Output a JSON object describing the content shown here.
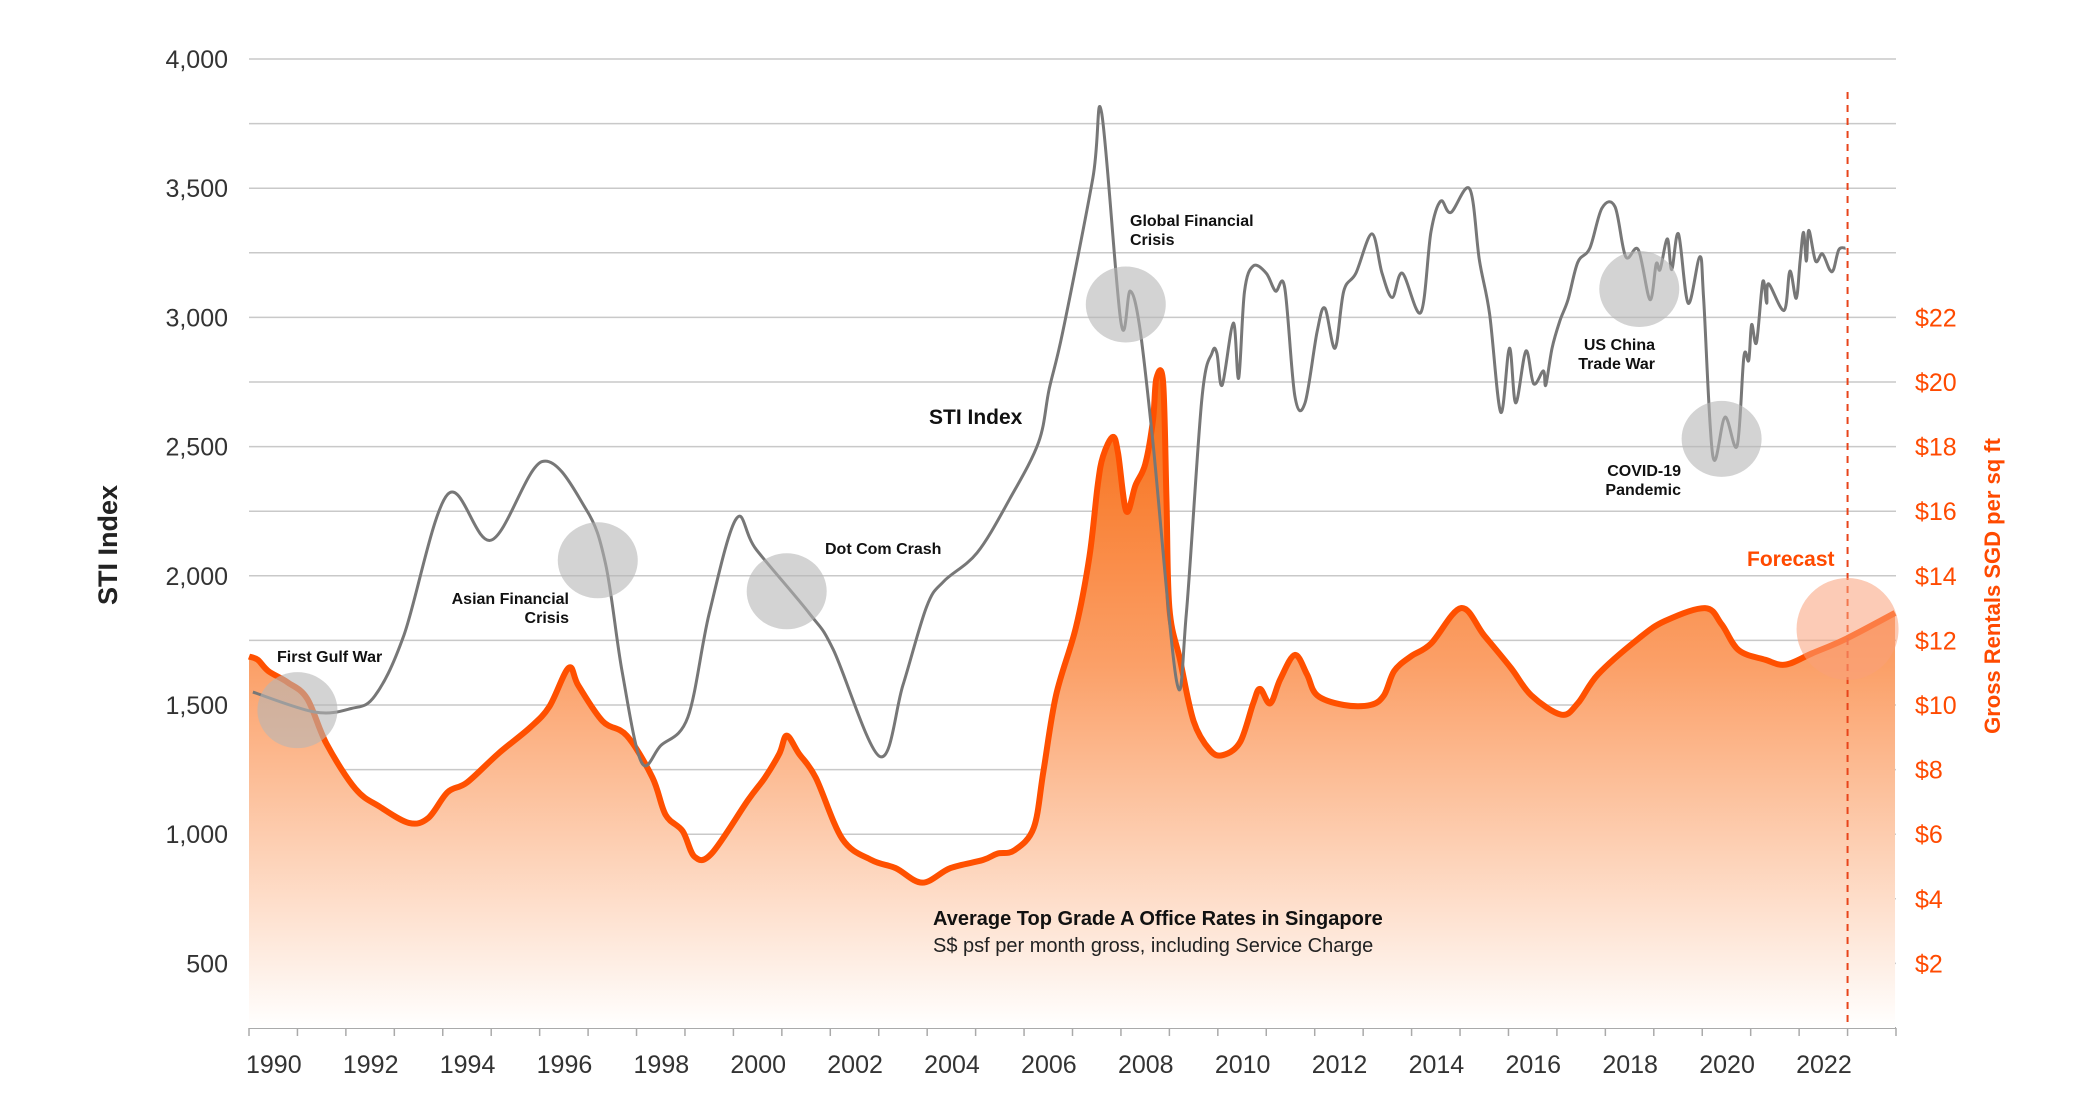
{
  "chart_data": {
    "type": "line",
    "title": "",
    "xlim": [
      1990,
      2024
    ],
    "x_ticks": [
      "1990",
      "1992",
      "1994",
      "1996",
      "1998",
      "2000",
      "2002",
      "2004",
      "2006",
      "2008",
      "2010",
      "2012",
      "2014",
      "2016",
      "2018",
      "2020",
      "2022"
    ],
    "left_axis": {
      "label": "STI Index",
      "ylim": [
        250,
        4000
      ],
      "ticks": [
        "500",
        "1,000",
        "1,500",
        "2,000",
        "2,500",
        "3,000",
        "3,500",
        "4,000"
      ]
    },
    "right_axis": {
      "label": "Gross Rentals SGD per sq ft",
      "ylim": [
        0,
        30
      ],
      "ticks": [
        "$2",
        "$4",
        "$6",
        "$8",
        "$10",
        "$12",
        "$14",
        "$16",
        "$18",
        "$20",
        "$22"
      ]
    },
    "grid": true,
    "forecast_line_x": 2023,
    "series": [
      {
        "name": "STI Index",
        "axis": "left",
        "color": "#777777",
        "points": [
          [
            1990.08,
            1550
          ],
          [
            1991.35,
            1473
          ],
          [
            1992.1,
            1486
          ],
          [
            1992.6,
            1536
          ],
          [
            1993.2,
            1771
          ],
          [
            1994.1,
            2315
          ],
          [
            1995.0,
            2138
          ],
          [
            1996.05,
            2442
          ],
          [
            1996.95,
            2260
          ],
          [
            1997.36,
            2047
          ],
          [
            1997.7,
            1632
          ],
          [
            1998.1,
            1279
          ],
          [
            1998.5,
            1343
          ],
          [
            1999.06,
            1453
          ],
          [
            1999.5,
            1854
          ],
          [
            2000.06,
            2221
          ],
          [
            2000.47,
            2102
          ],
          [
            2001.57,
            1854
          ],
          [
            2002.06,
            1715
          ],
          [
            2003.02,
            1301
          ],
          [
            2003.5,
            1577
          ],
          [
            2003.99,
            1881
          ],
          [
            2004.34,
            1978
          ],
          [
            2005.03,
            2089
          ],
          [
            2005.7,
            2296
          ],
          [
            2006.3,
            2517
          ],
          [
            2006.52,
            2724
          ],
          [
            2006.8,
            2945
          ],
          [
            2007.42,
            3539
          ],
          [
            2007.6,
            3793
          ],
          [
            2008.0,
            2981
          ],
          [
            2008.19,
            3102
          ],
          [
            2008.39,
            2959
          ],
          [
            2008.66,
            2517
          ],
          [
            2009.15,
            1591
          ],
          [
            2009.35,
            1854
          ],
          [
            2009.67,
            2683
          ],
          [
            2009.88,
            2862
          ],
          [
            2009.98,
            2862
          ],
          [
            2010.09,
            2738
          ],
          [
            2010.32,
            2978
          ],
          [
            2010.43,
            2765
          ],
          [
            2010.55,
            3099
          ],
          [
            2010.73,
            3199
          ],
          [
            2011.0,
            3171
          ],
          [
            2011.19,
            3102
          ],
          [
            2011.38,
            3116
          ],
          [
            2011.59,
            2696
          ],
          [
            2011.8,
            2669
          ],
          [
            2012.05,
            2945
          ],
          [
            2012.21,
            3036
          ],
          [
            2012.42,
            2881
          ],
          [
            2012.6,
            3102
          ],
          [
            2012.85,
            3171
          ],
          [
            2013.18,
            3323
          ],
          [
            2013.39,
            3171
          ],
          [
            2013.6,
            3077
          ],
          [
            2013.81,
            3171
          ],
          [
            2014.19,
            3019
          ],
          [
            2014.4,
            3331
          ],
          [
            2014.6,
            3450
          ],
          [
            2014.81,
            3406
          ],
          [
            2015.2,
            3497
          ],
          [
            2015.4,
            3221
          ],
          [
            2015.61,
            3014
          ],
          [
            2015.84,
            2633
          ],
          [
            2016.02,
            2881
          ],
          [
            2016.15,
            2669
          ],
          [
            2016.36,
            2870
          ],
          [
            2016.52,
            2743
          ],
          [
            2016.72,
            2793
          ],
          [
            2016.77,
            2738
          ],
          [
            2016.9,
            2881
          ],
          [
            2017.06,
            2986
          ],
          [
            2017.23,
            3069
          ],
          [
            2017.43,
            3213
          ],
          [
            2017.68,
            3268
          ],
          [
            2017.93,
            3423
          ],
          [
            2018.2,
            3428
          ],
          [
            2018.42,
            3235
          ],
          [
            2018.68,
            3262
          ],
          [
            2018.92,
            3069
          ],
          [
            2019.05,
            3207
          ],
          [
            2019.13,
            3185
          ],
          [
            2019.28,
            3304
          ],
          [
            2019.37,
            3185
          ],
          [
            2019.51,
            3323
          ],
          [
            2019.71,
            3055
          ],
          [
            2019.95,
            3235
          ],
          [
            2020.03,
            3069
          ],
          [
            2020.22,
            2462
          ],
          [
            2020.47,
            2614
          ],
          [
            2020.72,
            2503
          ],
          [
            2020.86,
            2848
          ],
          [
            2020.96,
            2834
          ],
          [
            2021.02,
            2972
          ],
          [
            2021.12,
            2903
          ],
          [
            2021.25,
            3138
          ],
          [
            2021.33,
            3055
          ],
          [
            2021.37,
            3130
          ],
          [
            2021.69,
            3027
          ],
          [
            2021.81,
            3179
          ],
          [
            2021.94,
            3074
          ],
          [
            2022.02,
            3218
          ],
          [
            2022.09,
            3329
          ],
          [
            2022.15,
            3218
          ],
          [
            2022.2,
            3337
          ],
          [
            2022.34,
            3218
          ],
          [
            2022.48,
            3246
          ],
          [
            2022.63,
            3185
          ],
          [
            2022.71,
            3185
          ],
          [
            2022.82,
            3262
          ],
          [
            2022.96,
            3268
          ]
        ]
      },
      {
        "name": "Average Top Grade A Office Rates in Singapore",
        "axis": "right",
        "color": "#ff5000",
        "points": [
          [
            1990.0,
            11.5
          ],
          [
            1990.18,
            11.4
          ],
          [
            1990.4,
            11.05
          ],
          [
            1990.8,
            10.7
          ],
          [
            1991.2,
            10.2
          ],
          [
            1991.6,
            8.8
          ],
          [
            1992.2,
            7.4
          ],
          [
            1992.7,
            6.85
          ],
          [
            1993.3,
            6.35
          ],
          [
            1993.7,
            6.5
          ],
          [
            1994.1,
            7.3
          ],
          [
            1994.5,
            7.6
          ],
          [
            1995.15,
            8.5
          ],
          [
            1995.8,
            9.3
          ],
          [
            1996.2,
            9.95
          ],
          [
            1996.6,
            11.15
          ],
          [
            1996.8,
            10.6
          ],
          [
            1997.3,
            9.5
          ],
          [
            1997.8,
            9.05
          ],
          [
            1998.33,
            7.75
          ],
          [
            1998.6,
            6.6
          ],
          [
            1998.95,
            6.1
          ],
          [
            1999.2,
            5.3
          ],
          [
            1999.55,
            5.4
          ],
          [
            2000.3,
            7.05
          ],
          [
            2000.65,
            7.75
          ],
          [
            2000.95,
            8.5
          ],
          [
            2001.1,
            9.05
          ],
          [
            2001.35,
            8.5
          ],
          [
            2001.7,
            7.75
          ],
          [
            2002.25,
            5.85
          ],
          [
            2002.85,
            5.2
          ],
          [
            2003.35,
            4.95
          ],
          [
            2003.9,
            4.5
          ],
          [
            2004.48,
            4.95
          ],
          [
            2005.15,
            5.2
          ],
          [
            2005.45,
            5.4
          ],
          [
            2005.8,
            5.5
          ],
          [
            2006.2,
            6.2
          ],
          [
            2006.4,
            7.95
          ],
          [
            2006.66,
            10.3
          ],
          [
            2007.07,
            12.4
          ],
          [
            2007.35,
            14.6
          ],
          [
            2007.52,
            16.8
          ],
          [
            2007.63,
            17.7
          ],
          [
            2007.83,
            18.3
          ],
          [
            2007.94,
            17.8
          ],
          [
            2008.11,
            16.0
          ],
          [
            2008.3,
            16.8
          ],
          [
            2008.5,
            17.45
          ],
          [
            2008.66,
            18.8
          ],
          [
            2008.73,
            20.1
          ],
          [
            2008.87,
            20.0
          ],
          [
            2008.94,
            16.35
          ],
          [
            2009.0,
            13.0
          ],
          [
            2009.22,
            11.4
          ],
          [
            2009.5,
            9.5
          ],
          [
            2009.84,
            8.6
          ],
          [
            2010.11,
            8.45
          ],
          [
            2010.46,
            8.85
          ],
          [
            2010.73,
            10.05
          ],
          [
            2010.87,
            10.5
          ],
          [
            2011.08,
            10.05
          ],
          [
            2011.29,
            10.8
          ],
          [
            2011.59,
            11.55
          ],
          [
            2011.84,
            10.95
          ],
          [
            2012.05,
            10.3
          ],
          [
            2012.6,
            10.0
          ],
          [
            2013.15,
            10.0
          ],
          [
            2013.43,
            10.3
          ],
          [
            2013.64,
            11.05
          ],
          [
            2013.98,
            11.5
          ],
          [
            2014.4,
            11.9
          ],
          [
            2015.02,
            13.0
          ],
          [
            2015.5,
            12.15
          ],
          [
            2016.05,
            11.15
          ],
          [
            2016.47,
            10.3
          ],
          [
            2017.09,
            9.7
          ],
          [
            2017.43,
            10.05
          ],
          [
            2017.85,
            10.95
          ],
          [
            2018.68,
            12.05
          ],
          [
            2019.23,
            12.6
          ],
          [
            2020.06,
            13.0
          ],
          [
            2020.4,
            12.5
          ],
          [
            2020.75,
            11.7
          ],
          [
            2021.3,
            11.4
          ],
          [
            2021.72,
            11.25
          ],
          [
            2022.27,
            11.6
          ],
          [
            2022.97,
            12.05
          ],
          [
            2023.98,
            12.85
          ]
        ]
      }
    ],
    "labels": {
      "sti_series_label": "STI Index",
      "caption_title": "Average Top Grade A Office Rates in Singapore",
      "caption_subtitle": "S$ psf per month gross, including Service Charge",
      "forecast": "Forecast"
    },
    "annotations": [
      {
        "lines": [
          "First Gulf War"
        ],
        "year": 1991.0,
        "sti": 1480
      },
      {
        "lines": [
          "Asian Financial",
          "Crisis"
        ],
        "year": 1997.2,
        "sti": 2060
      },
      {
        "lines": [
          "Dot Com Crash"
        ],
        "year": 2001.1,
        "sti": 1940
      },
      {
        "lines": [
          "Global Financial",
          "Crisis"
        ],
        "year": 2008.1,
        "sti": 3050
      },
      {
        "lines": [
          "US China",
          "Trade War"
        ],
        "year": 2018.7,
        "sti": 3110
      },
      {
        "lines": [
          "COVID-19",
          "Pandemic"
        ],
        "year": 2020.4,
        "sti": 2530
      }
    ],
    "colors": {
      "sti": "#777777",
      "rent": "#ff5000",
      "accent": "#ff4a00",
      "grid": "#c9c9c9",
      "event_circle": "#b5b5b5",
      "forecast_circle": "#f9a07a"
    }
  }
}
